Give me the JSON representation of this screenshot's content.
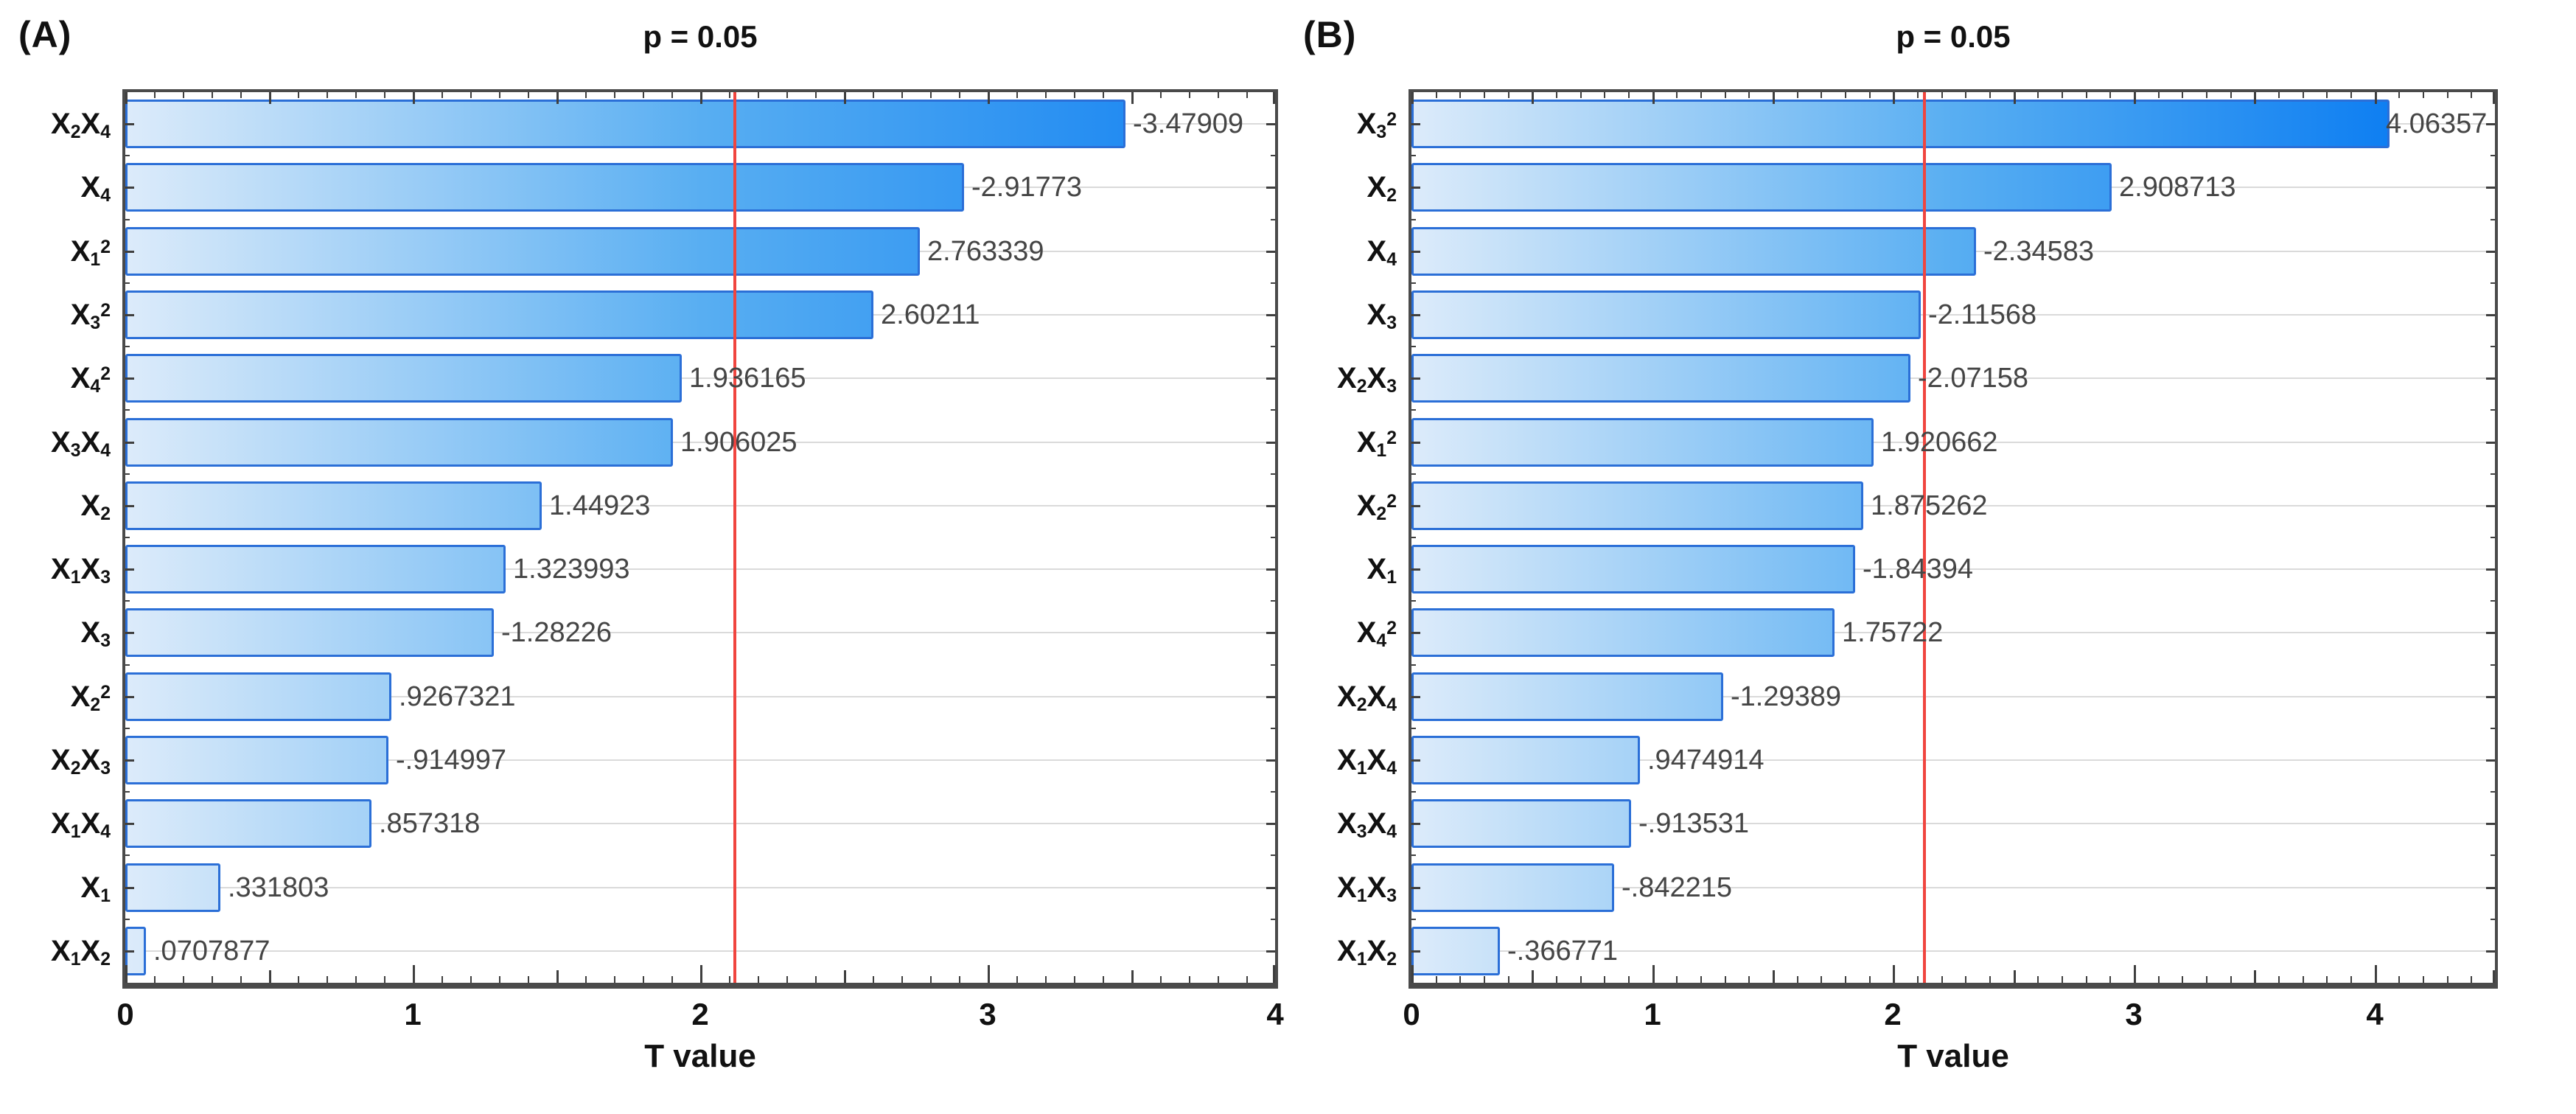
{
  "chart_data": {
    "type": "bar",
    "orientation": "horizontal",
    "description": "Pareto charts of standardized effects (T values) with p = 0.05 significance line",
    "panels": [
      {
        "panel_label": "(A)",
        "title": "p = 0.05",
        "xlabel": "T value",
        "xlim": [
          0,
          4
        ],
        "x_ticks": [
          0,
          1,
          2,
          3,
          4
        ],
        "significance_line_t": 2.12,
        "categories": [
          "X2X4",
          "X4",
          "X1^2",
          "X3^2",
          "X4^2",
          "X3X4",
          "X2",
          "X1X3",
          "X3",
          "X2^2",
          "X2X3",
          "X1X4",
          "X1",
          "X1X2"
        ],
        "values": [
          -3.47909,
          -2.91773,
          2.763339,
          2.60211,
          1.936165,
          1.906025,
          1.44923,
          1.323993,
          -1.28226,
          0.9267321,
          -0.914997,
          0.857318,
          0.331803,
          0.0707877
        ],
        "value_labels": [
          "-3.47909",
          "-2.91773",
          "2.763339",
          "2.60211",
          "1.936165",
          "1.906025",
          "1.44923",
          "1.323993",
          "-1.28226",
          ".9267321",
          "-.914997",
          ".857318",
          ".331803",
          ".0707877"
        ]
      },
      {
        "panel_label": "(B)",
        "title": "p = 0.05",
        "xlabel": "T value",
        "xlim": [
          0,
          4.5
        ],
        "x_ticks": [
          0,
          1,
          2,
          3,
          4
        ],
        "significance_line_t": 2.13,
        "categories": [
          "X3^2",
          "X2",
          "X4",
          "X3",
          "X2X3",
          "X1^2",
          "X2^2",
          "X1",
          "X4^2",
          "X2X4",
          "X1X4",
          "X3X4",
          "X1X3",
          "X1X2"
        ],
        "values": [
          4.06357,
          2.908713,
          -2.34583,
          -2.11568,
          -2.07158,
          1.920662,
          1.875262,
          -1.84394,
          1.75722,
          -1.29389,
          0.9474914,
          -0.913531,
          -0.842215,
          -0.366771
        ],
        "value_labels": [
          "4.06357",
          "2.908713",
          "-2.34583",
          "-2.11568",
          "-2.07158",
          "1.920662",
          "1.875262",
          "-1.84394",
          "1.75722",
          "-1.29389",
          ".9474914",
          "-.913531",
          "-.842215",
          "-.366771"
        ]
      }
    ],
    "legend": "none",
    "grid": "horizontal-light",
    "colors": {
      "bar_gradient_start": "#dcebfa",
      "bar_gradient_mid": "#58aef2",
      "bar_gradient_end": "#0d7ef2",
      "bar_border": "#2b6fd7",
      "significance_line": "#f0453f",
      "grid": "#dadada",
      "axis": "#4a4a4a",
      "value_label": "#454545",
      "text": "#111111"
    }
  }
}
